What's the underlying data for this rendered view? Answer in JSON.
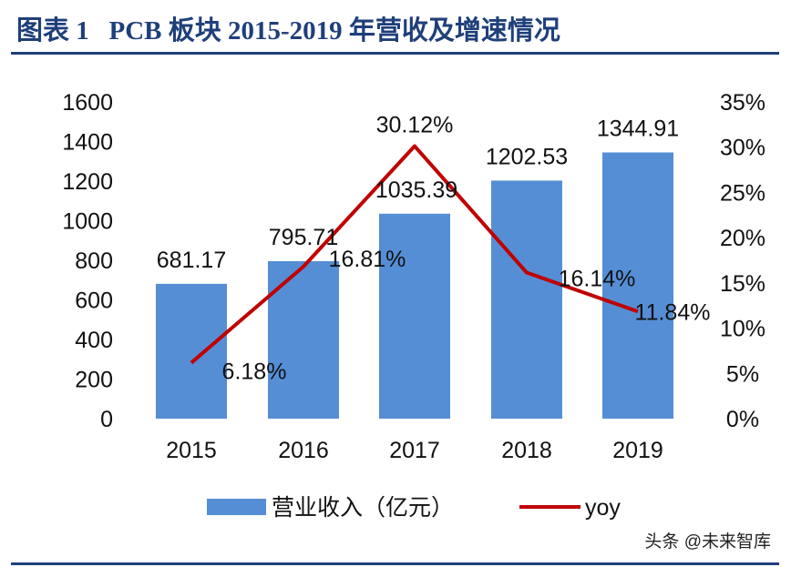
{
  "title": "图表 1   PCB 板块 2015-2019 年营收及增速情况",
  "watermark": "头条 @未来智库",
  "chart_data": {
    "type": "bar+line",
    "categories": [
      "2015",
      "2016",
      "2017",
      "2018",
      "2019"
    ],
    "series": [
      {
        "name": "营业收入（亿元）",
        "type": "bar",
        "axis": "left",
        "color": "#558ed5",
        "values": [
          681.17,
          795.71,
          1035.39,
          1202.53,
          1344.91
        ],
        "labels": [
          "681.17",
          "795.71",
          "1035.39",
          "1202.53",
          "1344.91"
        ]
      },
      {
        "name": "yoy",
        "type": "line",
        "axis": "right",
        "color": "#c00000",
        "values": [
          6.18,
          16.81,
          30.12,
          16.14,
          11.84
        ],
        "labels": [
          "6.18%",
          "16.81%",
          "30.12%",
          "16.14%",
          "11.84%"
        ]
      }
    ],
    "y_left": {
      "range": [
        0,
        1600
      ],
      "ticks": [
        "0",
        "200",
        "400",
        "600",
        "800",
        "1000",
        "1200",
        "1400",
        "1600"
      ]
    },
    "y_right": {
      "range": [
        0,
        35
      ],
      "ticks": [
        "0%",
        "5%",
        "10%",
        "15%",
        "20%",
        "25%",
        "30%",
        "35%"
      ]
    },
    "grid": false,
    "legend": "bottom"
  }
}
